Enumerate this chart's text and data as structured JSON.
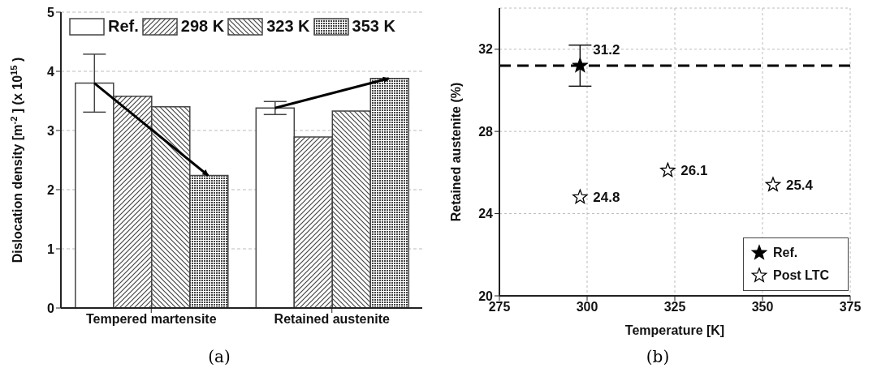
{
  "chart_data": [
    {
      "type": "bar",
      "categories": [
        "Tempered martensite",
        "Retained austenite"
      ],
      "ylabel": "Dislocation density [m$^{-2}$] (x 10$^{15}$)",
      "ylim": [
        0,
        5
      ],
      "yticks": [
        0,
        1,
        2,
        3,
        4,
        5
      ],
      "grid": "y",
      "legend": "top",
      "annotations": [
        "(a)"
      ],
      "series": [
        {
          "name": "Ref.",
          "color": "#444444",
          "values": [
            3.8,
            3.38
          ],
          "errors": [
            [
              3.31,
              4.29
            ],
            [
              3.27,
              3.49
            ]
          ]
        },
        {
          "name": "298 K",
          "color": "#444444",
          "values": [
            3.58,
            2.89
          ]
        },
        {
          "name": "323 K",
          "color": "#444444",
          "values": [
            3.4,
            3.33
          ]
        },
        {
          "name": "353 K",
          "color": "#444444",
          "values": [
            2.24,
            3.88
          ]
        }
      ]
    },
    {
      "type": "scatter",
      "xlabel": "Temperature [K]",
      "ylabel": "Retained austenite (%)",
      "xlim": [
        275,
        375
      ],
      "xticks": [
        275,
        300,
        325,
        350,
        375
      ],
      "ylim": [
        20,
        34
      ],
      "yticks": [
        20,
        24,
        28,
        32
      ],
      "grid": true,
      "legend": "bottom right",
      "marker": "star",
      "data_labels": true,
      "annotations": [
        "(b)"
      ],
      "ref_lines": [
        {
          "axis": "y",
          "value": 31.2,
          "line_style": "dashed",
          "color": "#000000"
        }
      ],
      "series": [
        {
          "name": "Ref.",
          "color": "#000000",
          "x": [
            298
          ],
          "values": [
            31.2
          ],
          "errors": [
            [
              30.2,
              32.2
            ]
          ]
        },
        {
          "name": "Post LTC",
          "color": "#ffffff",
          "x": [
            298,
            323,
            353
          ],
          "values": [
            24.8,
            26.1,
            25.4
          ]
        }
      ]
    }
  ]
}
